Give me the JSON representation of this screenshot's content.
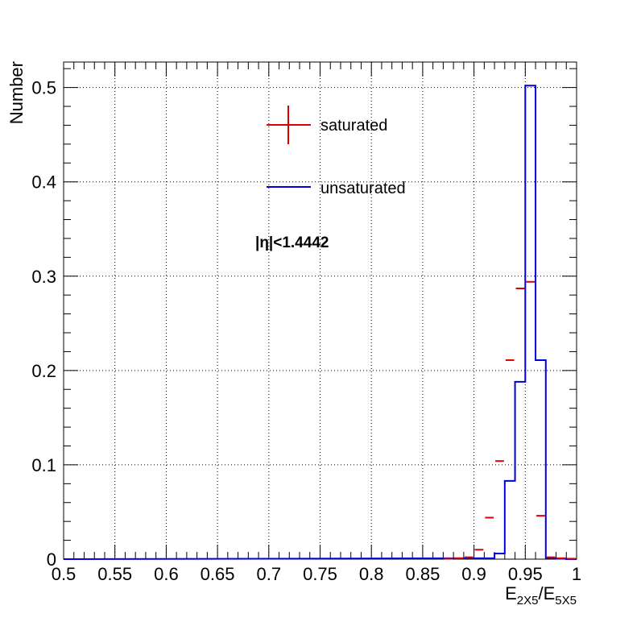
{
  "chart_data": {
    "type": "histogram",
    "xlabel": {
      "main": "E",
      "sub1": "2X5",
      "sep": "/",
      "main2": "E",
      "sub2": "5X5"
    },
    "ylabel": "Number",
    "xlim": [
      0.5,
      1.0
    ],
    "ylim": [
      0,
      0.527
    ],
    "grid": true,
    "legend_position": "top-center",
    "annotation": "|η|<1.4442",
    "x_ticks": [
      "0.5",
      "0.55",
      "0.6",
      "0.65",
      "0.7",
      "0.75",
      "0.8",
      "0.85",
      "0.9",
      "0.95",
      "1"
    ],
    "y_ticks": [
      "0",
      "0.1",
      "0.2",
      "0.3",
      "0.4",
      "0.5"
    ],
    "bin_width": 0.01,
    "series": [
      {
        "name": "saturated",
        "style": "points",
        "color": "#dd0000",
        "bin_low_edges": [
          0.87,
          0.88,
          0.89,
          0.9,
          0.91,
          0.92,
          0.93,
          0.94,
          0.95,
          0.96,
          0.97,
          0.98,
          0.99
        ],
        "values": [
          0.0005,
          0.001,
          0.002,
          0.01,
          0.044,
          0.104,
          0.211,
          0.287,
          0.294,
          0.046,
          0.002,
          0.001,
          0.0005
        ]
      },
      {
        "name": "unsaturated",
        "style": "step",
        "color": "#0000dd",
        "bin_low_edges": [
          0.91,
          0.92,
          0.93,
          0.94,
          0.95,
          0.96,
          0.97,
          0.98,
          0.99
        ],
        "values": [
          0.001,
          0.006,
          0.083,
          0.188,
          0.502,
          0.211,
          0.001,
          0.0005,
          0.0
        ]
      }
    ]
  }
}
